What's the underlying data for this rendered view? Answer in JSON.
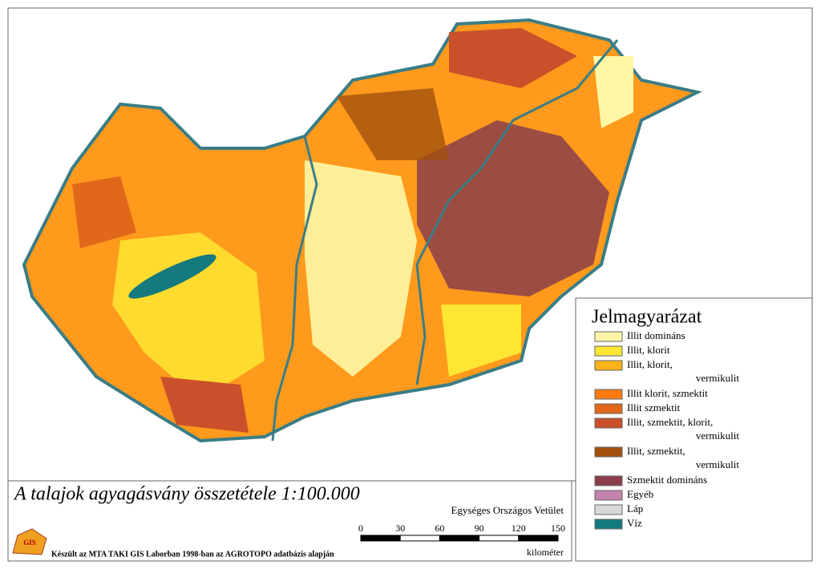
{
  "map": {
    "title": "A talajok agyagásvány összetétele 1:100.000",
    "projection": "Egységes Országos Vetület",
    "credit": "Készült az MTA TAKI GIS Laborban 1998-ban az AGROTOPO adatbázis alapján",
    "logo": "GIS",
    "scale": {
      "labels": [
        "0",
        "30",
        "60",
        "90",
        "120",
        "150"
      ],
      "unit": "kilométer"
    },
    "legend": {
      "title": "Jelmagyarázat",
      "items": [
        {
          "lines": [
            "Illit domináns"
          ],
          "color": "#fff7a6"
        },
        {
          "lines": [
            "Illit, klorit"
          ],
          "color": "#ffe633"
        },
        {
          "lines": [
            "Illit, klorit,",
            "vermikulit"
          ],
          "color": "#ffb31a"
        },
        {
          "lines": [
            "Illit klorit, szmektit"
          ],
          "color": "#ff7b12"
        },
        {
          "lines": [
            "Illit szmektit"
          ],
          "color": "#e0681a"
        },
        {
          "lines": [
            "Illit, szmektit, klorit,",
            "vermikulit"
          ],
          "color": "#c9502a"
        },
        {
          "lines": [
            "Illit, szmektit,",
            "vermikulit"
          ],
          "color": "#a3500e"
        },
        {
          "lines": [
            "Szmektit domináns"
          ],
          "color": "#8b3e4a"
        },
        {
          "lines": [
            "Egyéb"
          ],
          "color": "#c283ad"
        },
        {
          "lines": [
            "Láp"
          ],
          "color": "#d9d9d9"
        },
        {
          "lines": [
            "Víz"
          ],
          "color": "#147a7e"
        }
      ]
    }
  }
}
